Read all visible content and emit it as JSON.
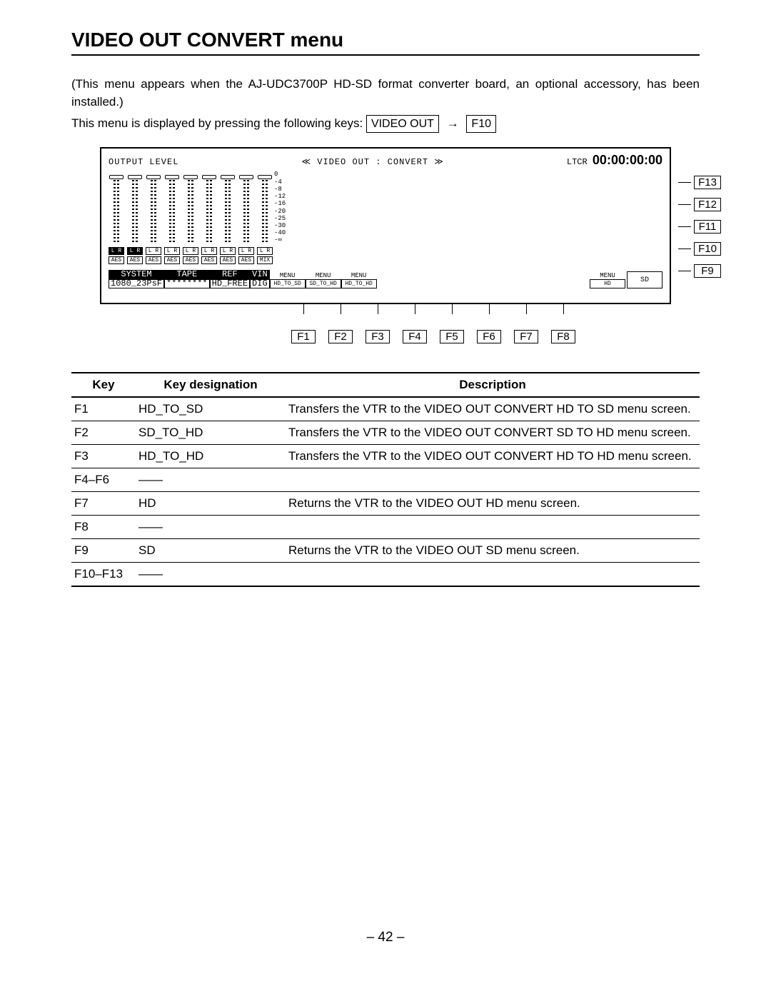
{
  "title": "VIDEO OUT CONVERT menu",
  "intro1": "(This menu appears when the AJ-UDC3700P HD-SD format converter board, an optional accessory, has been installed.)",
  "intro2_pre": "This menu is displayed by pressing the following keys: ",
  "key1": "VIDEO OUT",
  "arrow": "→",
  "key2": "F10",
  "panel": {
    "output_level": "OUTPUT LEVEL",
    "title": "≪ VIDEO OUT : CONVERT ≫",
    "ltcr": "LTCR",
    "tc": "00:00:00:00",
    "scale": [
      "0",
      "-4",
      "-8",
      "-12",
      "-16",
      "-20",
      "-25",
      "-30",
      "-40",
      "-∞"
    ],
    "lr_labels": [
      "L R",
      "L R",
      "L R",
      "L R",
      "L R",
      "L R",
      "L R",
      "L R",
      "L R"
    ],
    "aes_labels": [
      "AES",
      "AES",
      "AES",
      "AES",
      "AES",
      "AES",
      "AES",
      "AES",
      "MIX"
    ],
    "status_top": [
      "SYSTEM",
      "TAPE",
      "REF",
      "VIN"
    ],
    "status_bot": [
      "1080_23PsF",
      "********",
      "HD_FREE",
      "DIG"
    ],
    "softkeys": [
      "HD_TO_SD",
      "SD_TO_HD",
      "HD_TO_HD"
    ],
    "menu_word": "MENU",
    "hd": "HD",
    "sd": "SD"
  },
  "side_keys": [
    "F13",
    "F12",
    "F11",
    "F10",
    "F9"
  ],
  "bottom_keys": [
    "F1",
    "F2",
    "F3",
    "F4",
    "F5",
    "F6",
    "F7",
    "F8"
  ],
  "table": {
    "headers": [
      "Key",
      "Key designation",
      "Description"
    ],
    "rows": [
      {
        "k": "F1",
        "d": "HD_TO_SD",
        "desc": "Transfers the VTR to the VIDEO OUT CONVERT HD TO SD menu screen."
      },
      {
        "k": "F2",
        "d": "SD_TO_HD",
        "desc": "Transfers the VTR to the VIDEO OUT CONVERT SD TO HD menu screen."
      },
      {
        "k": "F3",
        "d": "HD_TO_HD",
        "desc": "Transfers the VTR to the VIDEO OUT CONVERT HD TO HD menu screen."
      },
      {
        "k": "F4–F6",
        "d": "——",
        "desc": ""
      },
      {
        "k": "F7",
        "d": "HD",
        "desc": "Returns the VTR to the VIDEO OUT HD menu screen."
      },
      {
        "k": "F8",
        "d": "——",
        "desc": ""
      },
      {
        "k": "F9",
        "d": "SD",
        "desc": "Returns the VTR to the VIDEO OUT SD menu screen."
      },
      {
        "k": "F10–F13",
        "d": "——",
        "desc": ""
      }
    ]
  },
  "pagenum": "– 42 –"
}
